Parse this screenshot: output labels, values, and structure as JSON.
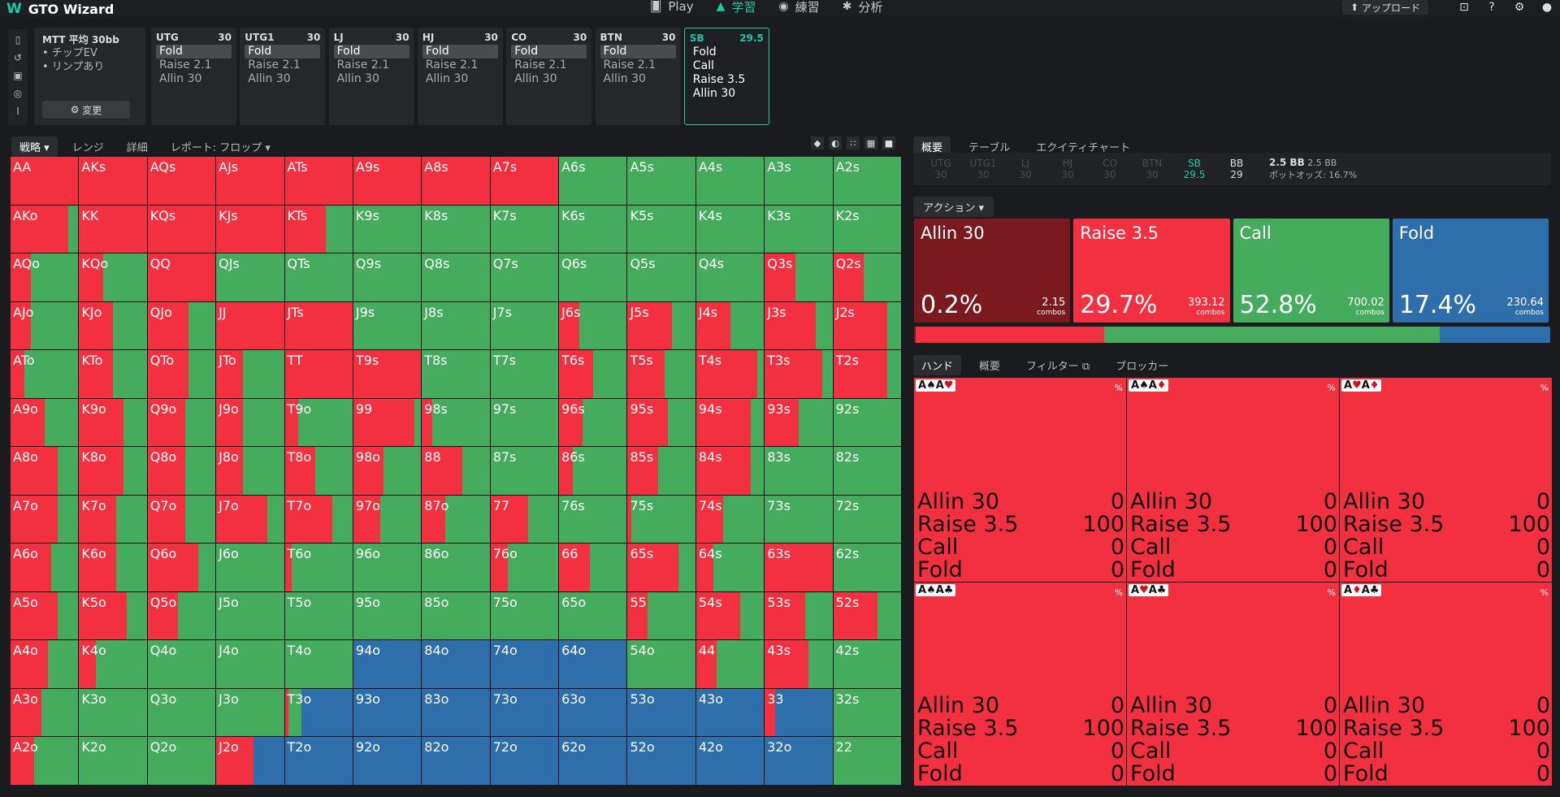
{
  "app": {
    "name": "GTO Wizard"
  },
  "nav": {
    "play": "Play",
    "study": "学習",
    "practice": "練習",
    "analyze": "分析",
    "upload": "アップロード"
  },
  "mtt": {
    "title": "MTT 平均 30bb",
    "bullet1": "• チップEV",
    "bullet2": "• リンプあり",
    "change": "変更"
  },
  "positions": [
    {
      "name": "UTG",
      "stack": "30",
      "opts": [
        "Fold",
        "Raise 2.1",
        "Allin 30"
      ]
    },
    {
      "name": "UTG1",
      "stack": "30",
      "opts": [
        "Fold",
        "Raise 2.1",
        "Allin 30"
      ]
    },
    {
      "name": "LJ",
      "stack": "30",
      "opts": [
        "Fold",
        "Raise 2.1",
        "Allin 30"
      ]
    },
    {
      "name": "HJ",
      "stack": "30",
      "opts": [
        "Fold",
        "Raise 2.1",
        "Allin 30"
      ]
    },
    {
      "name": "CO",
      "stack": "30",
      "opts": [
        "Fold",
        "Raise 2.1",
        "Allin 30"
      ]
    },
    {
      "name": "BTN",
      "stack": "30",
      "opts": [
        "Fold",
        "Raise 2.1",
        "Allin 30"
      ]
    },
    {
      "name": "SB",
      "stack": "29.5",
      "opts": [
        "Fold",
        "Call",
        "Raise 3.5",
        "Allin 30"
      ]
    }
  ],
  "leftTabs": {
    "strategy": "戦略",
    "range": "レンジ",
    "detail": "詳細",
    "report": "レポート: フロップ"
  },
  "rightTabs": {
    "overview": "概要",
    "table": "テーブル",
    "equity": "エクイティチャート"
  },
  "seats": [
    {
      "n": "UTG",
      "v": "30"
    },
    {
      "n": "UTG1",
      "v": "30"
    },
    {
      "n": "LJ",
      "v": "30"
    },
    {
      "n": "HJ",
      "v": "30"
    },
    {
      "n": "CO",
      "v": "30"
    },
    {
      "n": "BTN",
      "v": "30"
    },
    {
      "n": "SB",
      "v": "29.5"
    },
    {
      "n": "BB",
      "v": "29"
    }
  ],
  "pot": {
    "a": "2.5 BB",
    "b": "2.5 BB",
    "oddsLabel": "ポットオッズ:",
    "odds": "16.7%"
  },
  "actionLabel": "アクション",
  "actions": [
    {
      "name": "Allin 30",
      "pct": "0.2%",
      "combos": "2.15",
      "unit": "combos",
      "color": "#7a1a1f"
    },
    {
      "name": "Raise 3.5",
      "pct": "29.7%",
      "combos": "393.12",
      "unit": "combos",
      "color": "#f2303f"
    },
    {
      "name": "Call",
      "pct": "52.8%",
      "combos": "700.02",
      "unit": "combos",
      "color": "#44ac5c"
    },
    {
      "name": "Fold",
      "pct": "17.4%",
      "combos": "230.64",
      "unit": "combos",
      "color": "#2e6eaa"
    }
  ],
  "freq": [
    0.2,
    29.7,
    52.8,
    17.4
  ],
  "handTabs": {
    "hand": "ハンド",
    "overview": "概要",
    "filter": "フィルター",
    "blocker": "ブロッカー"
  },
  "combos": [
    {
      "card": "A♠A♥"
    },
    {
      "card": "A♠A♦"
    },
    {
      "card": "A♥A♦"
    },
    {
      "card": "A♠A♣"
    },
    {
      "card": "A♥A♣"
    },
    {
      "card": "A♦A♣"
    }
  ],
  "comboRows": [
    [
      "Allin 30",
      "0"
    ],
    [
      "Raise 3.5",
      "100"
    ],
    [
      "Call",
      "0"
    ],
    [
      "Fold",
      "0"
    ]
  ],
  "comboPct": "%",
  "colors": {
    "allin": "#7a1a1f",
    "raise": "#f2303f",
    "call": "#44ac5c",
    "fold": "#2e6eaa",
    "accent": "#1ec7a6"
  },
  "hands": [
    [
      "AA",
      "AKs",
      "AQs",
      "AJs",
      "ATs",
      "A9s",
      "A8s",
      "A7s",
      "A6s",
      "A5s",
      "A4s",
      "A3s",
      "A2s"
    ],
    [
      "AKo",
      "KK",
      "KQs",
      "KJs",
      "KTs",
      "K9s",
      "K8s",
      "K7s",
      "K6s",
      "K5s",
      "K4s",
      "K3s",
      "K2s"
    ],
    [
      "AQo",
      "KQo",
      "QQ",
      "QJs",
      "QTs",
      "Q9s",
      "Q8s",
      "Q7s",
      "Q6s",
      "Q5s",
      "Q4s",
      "Q3s",
      "Q2s"
    ],
    [
      "AJo",
      "KJo",
      "QJo",
      "JJ",
      "JTs",
      "J9s",
      "J8s",
      "J7s",
      "J6s",
      "J5s",
      "J4s",
      "J3s",
      "J2s"
    ],
    [
      "ATo",
      "KTo",
      "QTo",
      "JTo",
      "TT",
      "T9s",
      "T8s",
      "T7s",
      "T6s",
      "T5s",
      "T4s",
      "T3s",
      "T2s"
    ],
    [
      "A9o",
      "K9o",
      "Q9o",
      "J9o",
      "T9o",
      "99",
      "98s",
      "97s",
      "96s",
      "95s",
      "94s",
      "93s",
      "92s"
    ],
    [
      "A8o",
      "K8o",
      "Q8o",
      "J8o",
      "T8o",
      "98o",
      "88",
      "87s",
      "86s",
      "85s",
      "84s",
      "83s",
      "82s"
    ],
    [
      "A7o",
      "K7o",
      "Q7o",
      "J7o",
      "T7o",
      "97o",
      "87o",
      "77",
      "76s",
      "75s",
      "74s",
      "73s",
      "72s"
    ],
    [
      "A6o",
      "K6o",
      "Q6o",
      "J6o",
      "T6o",
      "96o",
      "86o",
      "76o",
      "66",
      "65s",
      "64s",
      "63s",
      "62s"
    ],
    [
      "A5o",
      "K5o",
      "Q5o",
      "J5o",
      "T5o",
      "95o",
      "85o",
      "75o",
      "65o",
      "55",
      "54s",
      "53s",
      "52s"
    ],
    [
      "A4o",
      "K4o",
      "Q4o",
      "J4o",
      "T4o",
      "94o",
      "84o",
      "74o",
      "64o",
      "54o",
      "44",
      "43s",
      "42s"
    ],
    [
      "A3o",
      "K3o",
      "Q3o",
      "J3o",
      "T3o",
      "93o",
      "83o",
      "73o",
      "63o",
      "53o",
      "43o",
      "33",
      "32s"
    ],
    [
      "A2o",
      "K2o",
      "Q2o",
      "J2o",
      "T2o",
      "92o",
      "82o",
      "72o",
      "62o",
      "52o",
      "42o",
      "32o",
      "22"
    ]
  ],
  "strategy": [
    [
      [
        100,
        0,
        0
      ],
      [
        100,
        0,
        0
      ],
      [
        100,
        0,
        0
      ],
      [
        100,
        0,
        0
      ],
      [
        100,
        0,
        0
      ],
      [
        100,
        0,
        0
      ],
      [
        100,
        0,
        0
      ],
      [
        100,
        0,
        0
      ],
      [
        0,
        100,
        0
      ],
      [
        0,
        100,
        0
      ],
      [
        0,
        100,
        0
      ],
      [
        0,
        100,
        0
      ],
      [
        0,
        100,
        0
      ]
    ],
    [
      [
        85,
        15,
        0
      ],
      [
        100,
        0,
        0
      ],
      [
        100,
        0,
        0
      ],
      [
        100,
        0,
        0
      ],
      [
        60,
        40,
        0
      ],
      [
        0,
        100,
        0
      ],
      [
        0,
        100,
        0
      ],
      [
        0,
        100,
        0
      ],
      [
        0,
        100,
        0
      ],
      [
        0,
        100,
        0
      ],
      [
        0,
        100,
        0
      ],
      [
        0,
        100,
        0
      ],
      [
        0,
        100,
        0
      ]
    ],
    [
      [
        30,
        70,
        0
      ],
      [
        35,
        65,
        0
      ],
      [
        100,
        0,
        0
      ],
      [
        0,
        100,
        0
      ],
      [
        0,
        100,
        0
      ],
      [
        0,
        100,
        0
      ],
      [
        0,
        100,
        0
      ],
      [
        0,
        100,
        0
      ],
      [
        0,
        100,
        0
      ],
      [
        0,
        100,
        0
      ],
      [
        0,
        100,
        0
      ],
      [
        45,
        55,
        0
      ],
      [
        45,
        55,
        0
      ]
    ],
    [
      [
        30,
        70,
        0
      ],
      [
        50,
        50,
        0
      ],
      [
        60,
        40,
        0
      ],
      [
        100,
        0,
        0
      ],
      [
        100,
        0,
        0
      ],
      [
        0,
        100,
        0
      ],
      [
        0,
        100,
        0
      ],
      [
        0,
        100,
        0
      ],
      [
        30,
        70,
        0
      ],
      [
        65,
        35,
        0
      ],
      [
        50,
        50,
        0
      ],
      [
        75,
        25,
        0
      ],
      [
        80,
        20,
        0
      ]
    ],
    [
      [
        20,
        80,
        0
      ],
      [
        50,
        50,
        0
      ],
      [
        60,
        40,
        0
      ],
      [
        40,
        60,
        0
      ],
      [
        100,
        0,
        0
      ],
      [
        100,
        0,
        0
      ],
      [
        0,
        100,
        0
      ],
      [
        0,
        100,
        0
      ],
      [
        50,
        50,
        0
      ],
      [
        55,
        45,
        0
      ],
      [
        90,
        10,
        0
      ],
      [
        85,
        15,
        0
      ],
      [
        80,
        20,
        0
      ]
    ],
    [
      [
        50,
        50,
        0
      ],
      [
        65,
        35,
        0
      ],
      [
        55,
        45,
        0
      ],
      [
        40,
        60,
        0
      ],
      [
        20,
        80,
        0
      ],
      [
        90,
        10,
        0
      ],
      [
        15,
        85,
        0
      ],
      [
        0,
        100,
        0
      ],
      [
        35,
        65,
        0
      ],
      [
        60,
        40,
        0
      ],
      [
        80,
        20,
        0
      ],
      [
        50,
        50,
        0
      ],
      [
        0,
        100,
        0
      ]
    ],
    [
      [
        70,
        30,
        0
      ],
      [
        65,
        35,
        0
      ],
      [
        55,
        45,
        0
      ],
      [
        40,
        60,
        0
      ],
      [
        45,
        55,
        0
      ],
      [
        45,
        55,
        0
      ],
      [
        60,
        40,
        0
      ],
      [
        0,
        100,
        0
      ],
      [
        20,
        80,
        0
      ],
      [
        45,
        55,
        0
      ],
      [
        80,
        20,
        0
      ],
      [
        0,
        100,
        0
      ],
      [
        0,
        100,
        0
      ]
    ],
    [
      [
        70,
        30,
        0
      ],
      [
        55,
        45,
        0
      ],
      [
        55,
        45,
        0
      ],
      [
        75,
        25,
        0
      ],
      [
        70,
        30,
        0
      ],
      [
        40,
        60,
        0
      ],
      [
        35,
        65,
        0
      ],
      [
        55,
        45,
        0
      ],
      [
        0,
        100,
        0
      ],
      [
        5,
        95,
        0
      ],
      [
        40,
        60,
        0
      ],
      [
        0,
        100,
        0
      ],
      [
        0,
        100,
        0
      ]
    ],
    [
      [
        60,
        40,
        0
      ],
      [
        55,
        45,
        0
      ],
      [
        75,
        25,
        0
      ],
      [
        0,
        100,
        0
      ],
      [
        10,
        90,
        0
      ],
      [
        0,
        100,
        0
      ],
      [
        0,
        100,
        0
      ],
      [
        25,
        75,
        0
      ],
      [
        45,
        55,
        0
      ],
      [
        75,
        25,
        0
      ],
      [
        25,
        75,
        0
      ],
      [
        100,
        0,
        0
      ],
      [
        0,
        100,
        0
      ]
    ],
    [
      [
        70,
        30,
        0
      ],
      [
        70,
        30,
        0
      ],
      [
        45,
        55,
        0
      ],
      [
        0,
        100,
        0
      ],
      [
        0,
        100,
        0
      ],
      [
        0,
        100,
        0
      ],
      [
        0,
        100,
        0
      ],
      [
        0,
        100,
        0
      ],
      [
        0,
        100,
        0
      ],
      [
        30,
        70,
        0
      ],
      [
        65,
        35,
        0
      ],
      [
        60,
        40,
        0
      ],
      [
        65,
        35,
        0
      ]
    ],
    [
      [
        55,
        45,
        0
      ],
      [
        25,
        75,
        0
      ],
      [
        0,
        100,
        0
      ],
      [
        0,
        100,
        0
      ],
      [
        0,
        100,
        0
      ],
      [
        0,
        0,
        100
      ],
      [
        0,
        0,
        100
      ],
      [
        0,
        0,
        100
      ],
      [
        0,
        0,
        100
      ],
      [
        0,
        100,
        0
      ],
      [
        30,
        70,
        0
      ],
      [
        65,
        35,
        0
      ],
      [
        0,
        100,
        0
      ]
    ],
    [
      [
        45,
        55,
        0
      ],
      [
        0,
        100,
        0
      ],
      [
        0,
        100,
        0
      ],
      [
        0,
        100,
        0
      ],
      [
        5,
        20,
        75
      ],
      [
        0,
        0,
        100
      ],
      [
        0,
        0,
        100
      ],
      [
        0,
        0,
        100
      ],
      [
        0,
        0,
        100
      ],
      [
        0,
        0,
        100
      ],
      [
        0,
        0,
        100
      ],
      [
        15,
        0,
        85
      ],
      [
        0,
        100,
        0
      ]
    ],
    [
      [
        35,
        65,
        0
      ],
      [
        0,
        100,
        0
      ],
      [
        0,
        100,
        0
      ],
      [
        55,
        0,
        45
      ],
      [
        0,
        0,
        100
      ],
      [
        0,
        0,
        100
      ],
      [
        0,
        0,
        100
      ],
      [
        0,
        0,
        100
      ],
      [
        0,
        0,
        100
      ],
      [
        0,
        0,
        100
      ],
      [
        0,
        0,
        100
      ],
      [
        0,
        0,
        100
      ],
      [
        0,
        100,
        0
      ]
    ]
  ]
}
